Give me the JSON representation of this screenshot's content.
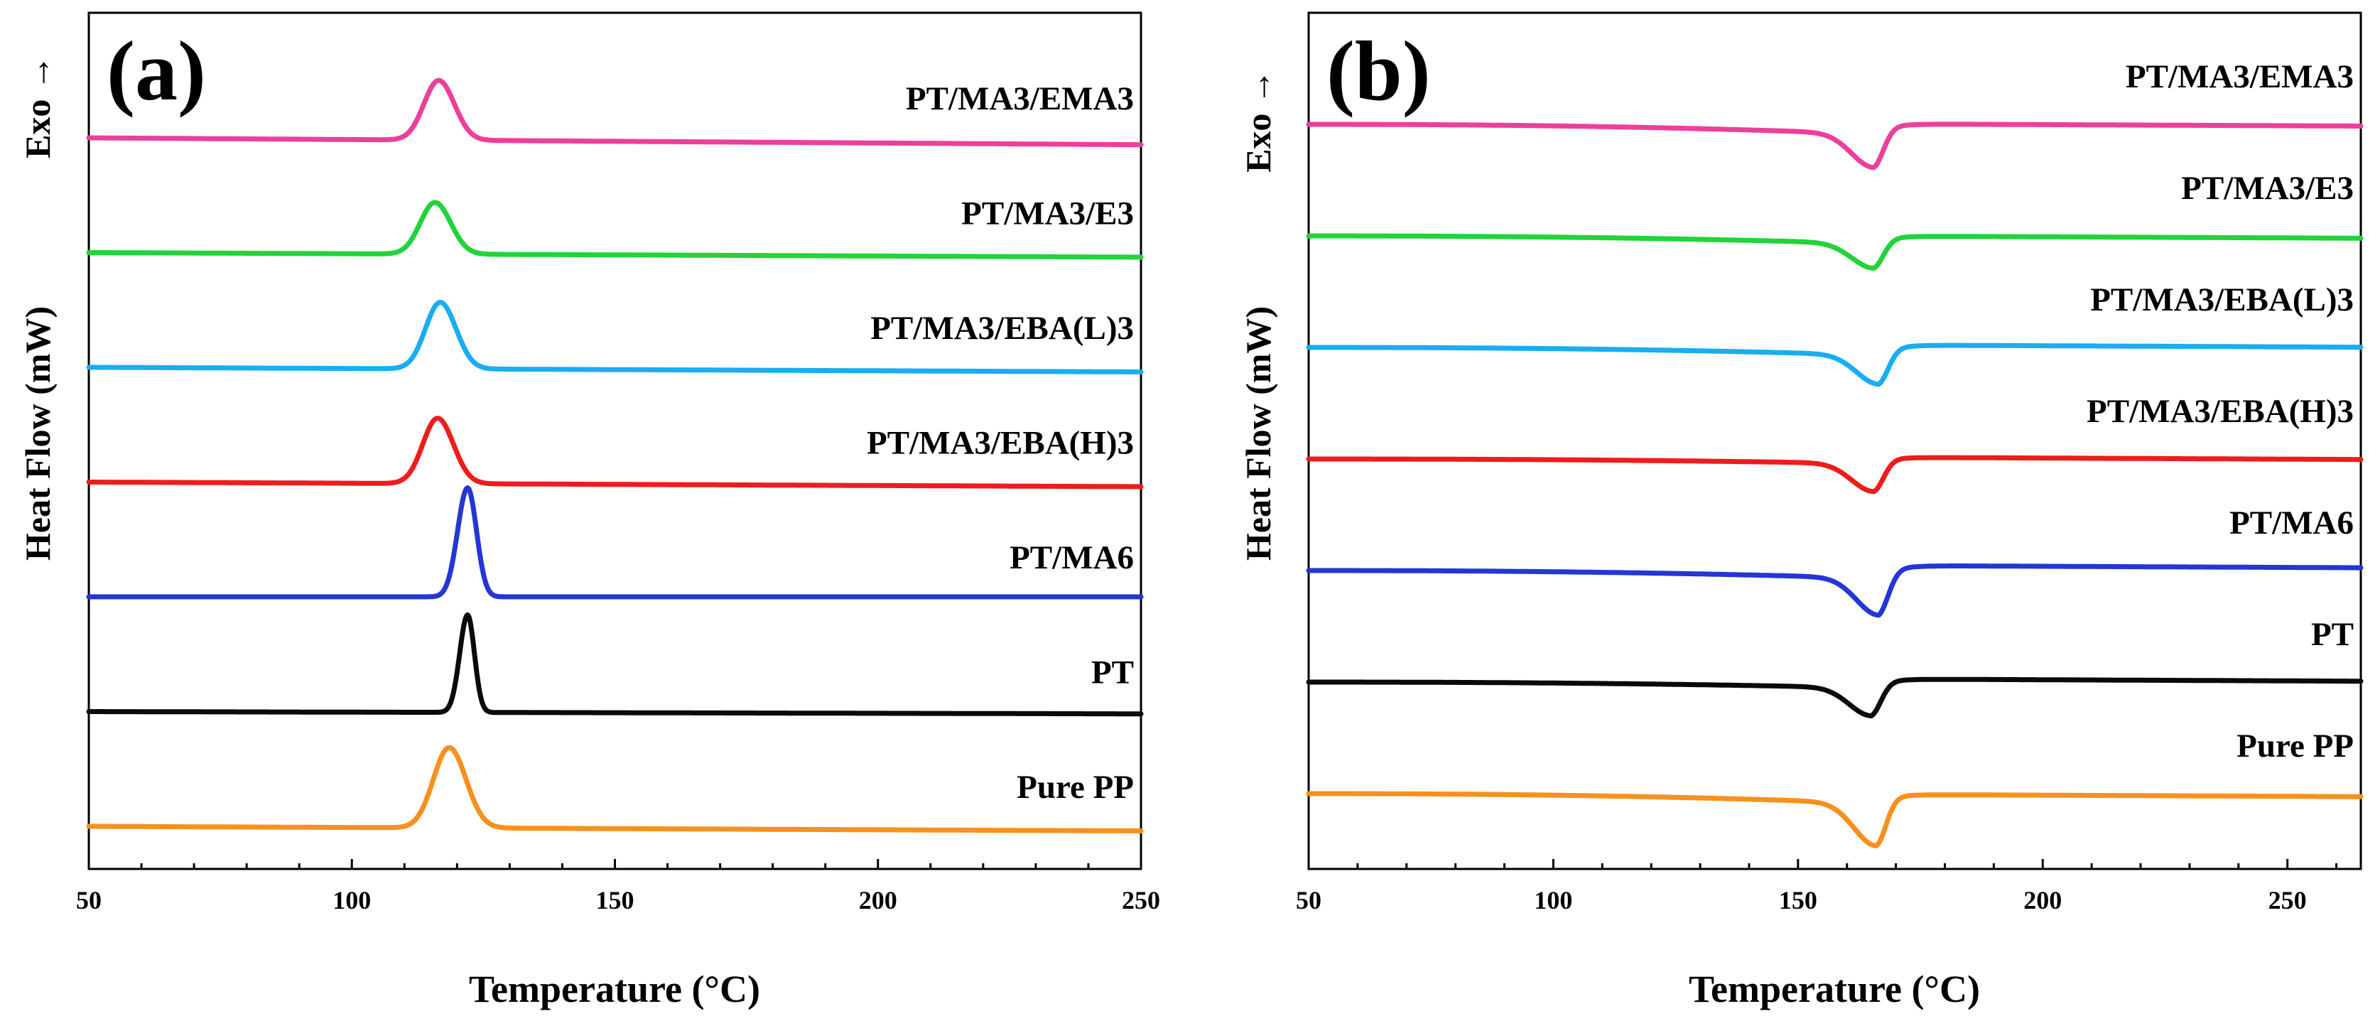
{
  "chart_data": [
    {
      "type": "line",
      "panel": "(a)",
      "title": "",
      "xlabel": "Temperature (°C)",
      "ylabel": "Heat Flow (mW)",
      "exo_label": "Exo →",
      "xlim": [
        50,
        250
      ],
      "xticks": [
        50,
        100,
        150,
        200,
        250
      ],
      "xtick_labels": [
        "50",
        "100",
        "150",
        "200",
        "250"
      ],
      "yticks_shown": false,
      "grid": false,
      "legend": "labels above each curve, right-aligned",
      "peak_direction": "up",
      "series": [
        {
          "name": "PT/MA3/EMA3",
          "color": "#ec3f9c",
          "baseline": 6.0,
          "slope": -0.06,
          "peak_temp": 116.5,
          "peak_height": 0.52,
          "width_low": 2.8,
          "width_high": 3.0
        },
        {
          "name": "PT/MA3/E3",
          "color": "#22d33a",
          "baseline": 5.0,
          "slope": -0.04,
          "peak_temp": 115.8,
          "peak_height": 0.45,
          "width_low": 2.8,
          "width_high": 3.0
        },
        {
          "name": "PT/MA3/EBA(L)3",
          "color": "#19aef0",
          "baseline": 4.0,
          "slope": -0.04,
          "peak_temp": 116.8,
          "peak_height": 0.58,
          "width_low": 2.8,
          "width_high": 3.0
        },
        {
          "name": "PT/MA3/EBA(H)3",
          "color": "#ee1c1c",
          "baseline": 3.0,
          "slope": -0.04,
          "peak_temp": 116.3,
          "peak_height": 0.57,
          "width_low": 2.8,
          "width_high": 3.0
        },
        {
          "name": "PT/MA6",
          "color": "#2436d6",
          "baseline": 2.0,
          "slope": 0.0,
          "peak_temp": 122.0,
          "peak_height": 0.95,
          "width_low": 1.9,
          "width_high": 1.7
        },
        {
          "name": "PT",
          "color": "#0a0a0a",
          "baseline": 1.0,
          "slope": -0.02,
          "peak_temp": 122.0,
          "peak_height": 0.85,
          "width_low": 1.5,
          "width_high": 1.3
        },
        {
          "name": "Pure PP",
          "color": "#f7901e",
          "baseline": 0.0,
          "slope": -0.04,
          "peak_temp": 118.5,
          "peak_height": 0.7,
          "width_low": 3.0,
          "width_high": 3.2
        }
      ]
    },
    {
      "type": "line",
      "panel": "(b)",
      "title": "",
      "xlabel": "Temperature (°C)",
      "ylabel": "Heat Flow (mW)",
      "exo_label": "Exo →",
      "xlim": [
        50,
        265
      ],
      "xticks": [
        50,
        100,
        150,
        200,
        250
      ],
      "xtick_labels": [
        "50",
        "100",
        "150",
        "200",
        "250"
      ],
      "yticks_shown": false,
      "grid": false,
      "legend": "labels above each curve, right-aligned",
      "peak_direction": "down",
      "series": [
        {
          "name": "PT/MA3/EMA3",
          "color": "#ec3f9c",
          "baseline": 6.0,
          "pre_slope": -0.25,
          "step": 0.08,
          "peak_temp": 165.5,
          "peak_depth": 0.3
        },
        {
          "name": "PT/MA3/E3",
          "color": "#22d33a",
          "baseline": 5.0,
          "pre_slope": -0.2,
          "step": 0.06,
          "peak_temp": 165.5,
          "peak_depth": 0.22
        },
        {
          "name": "PT/MA3/EBA(L)3",
          "color": "#19aef0",
          "baseline": 4.0,
          "pre_slope": -0.2,
          "step": 0.08,
          "peak_temp": 166.5,
          "peak_depth": 0.26
        },
        {
          "name": "PT/MA3/EBA(H)3",
          "color": "#ee1c1c",
          "baseline": 3.0,
          "pre_slope": -0.12,
          "step": 0.05,
          "peak_temp": 165.5,
          "peak_depth": 0.25
        },
        {
          "name": "PT/MA6",
          "color": "#2436d6",
          "baseline": 2.0,
          "pre_slope": -0.2,
          "step": 0.1,
          "peak_temp": 166.5,
          "peak_depth": 0.33
        },
        {
          "name": "PT",
          "color": "#0a0a0a",
          "baseline": 1.0,
          "pre_slope": -0.15,
          "step": 0.07,
          "peak_temp": 165.0,
          "peak_depth": 0.25
        },
        {
          "name": "Pure PP",
          "color": "#f7901e",
          "baseline": 0.0,
          "pre_slope": -0.25,
          "step": 0.07,
          "peak_temp": 166.0,
          "peak_depth": 0.38
        }
      ]
    }
  ]
}
